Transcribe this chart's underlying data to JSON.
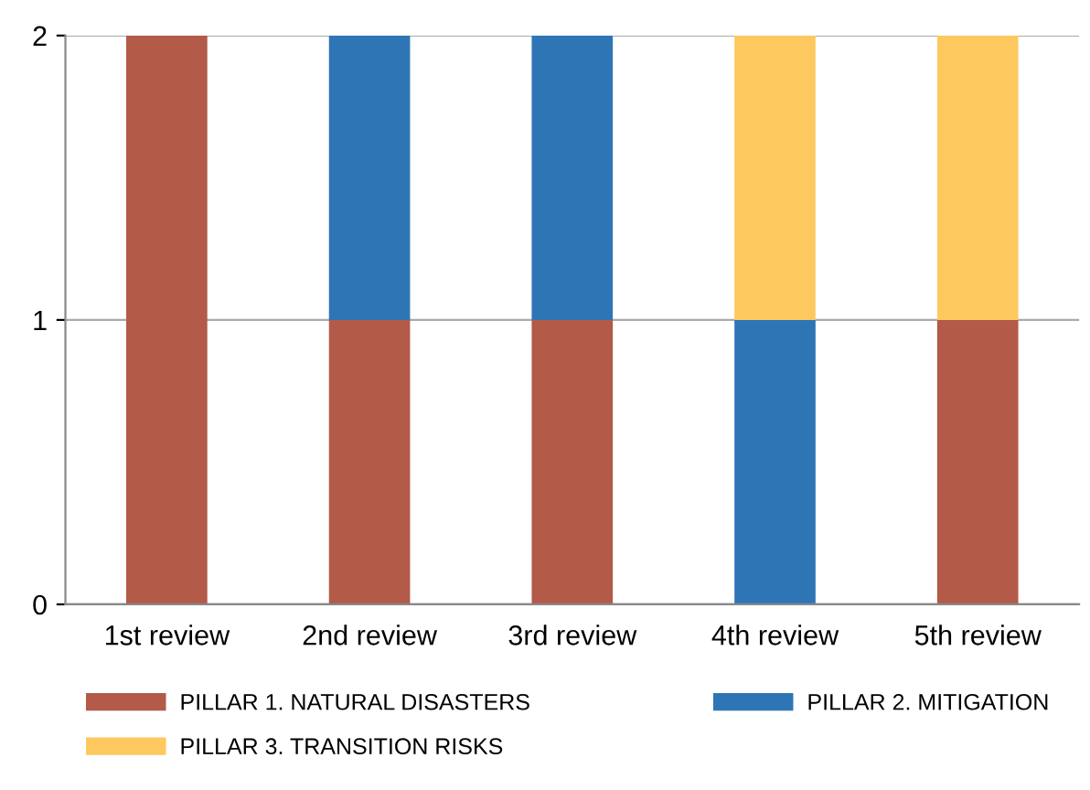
{
  "chart_data": {
    "type": "bar",
    "stacked": true,
    "categories": [
      "1st review",
      "2nd review",
      "3rd review",
      "4th review",
      "5th review"
    ],
    "series": [
      {
        "name": "PILLAR 1. NATURAL DISASTERS",
        "color": "#b35a48",
        "values": [
          2,
          1,
          1,
          0,
          1
        ]
      },
      {
        "name": "PILLAR 2. MITIGATION",
        "color": "#2e75b6",
        "values": [
          0,
          1,
          1,
          1,
          0
        ]
      },
      {
        "name": "PILLAR 3. TRANSITION RISKS",
        "color": "#fdc95e",
        "values": [
          0,
          0,
          0,
          1,
          1
        ]
      }
    ],
    "ylim": [
      0,
      2
    ],
    "yticks": [
      0,
      1,
      2
    ],
    "grid": "y",
    "legend": "bottom"
  }
}
